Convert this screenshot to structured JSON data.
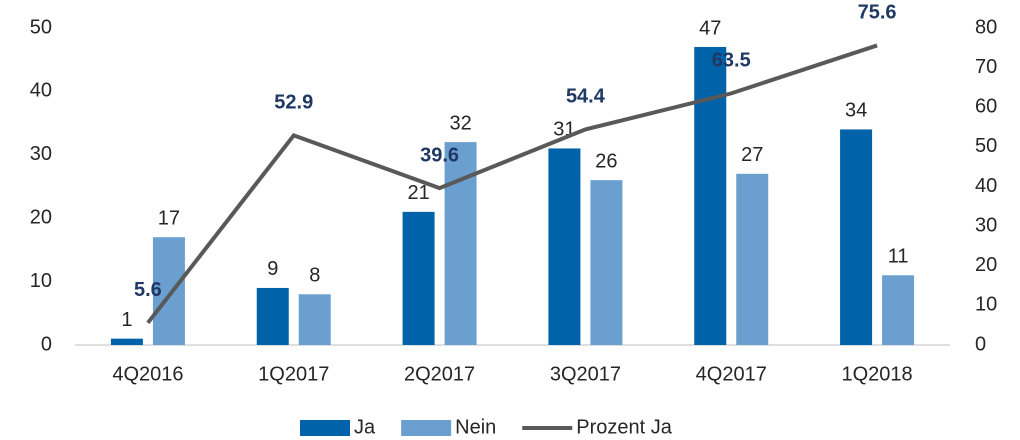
{
  "chart_data": {
    "type": "bar",
    "categories": [
      "4Q2016",
      "1Q2017",
      "2Q2017",
      "3Q2017",
      "4Q2017",
      "1Q2018"
    ],
    "series": [
      {
        "name": "Ja",
        "color": "#0062a8",
        "values": [
          1,
          9,
          21,
          31,
          47,
          34
        ]
      },
      {
        "name": "Nein",
        "color": "#6b9fd0",
        "values": [
          17,
          8,
          32,
          26,
          27,
          11
        ]
      },
      {
        "name": "Prozent Ja",
        "type": "line",
        "axis": "y2",
        "color": "#595959",
        "values": [
          5.6,
          52.9,
          39.6,
          54.4,
          63.5,
          75.6
        ]
      }
    ],
    "ylim": [
      0,
      50
    ],
    "yticks": [
      0,
      10,
      20,
      30,
      40,
      50
    ],
    "y2lim": [
      0,
      80
    ],
    "y2ticks": [
      0,
      10,
      20,
      30,
      40,
      50,
      60,
      70,
      80
    ],
    "grid": false,
    "legend": "bottom"
  }
}
